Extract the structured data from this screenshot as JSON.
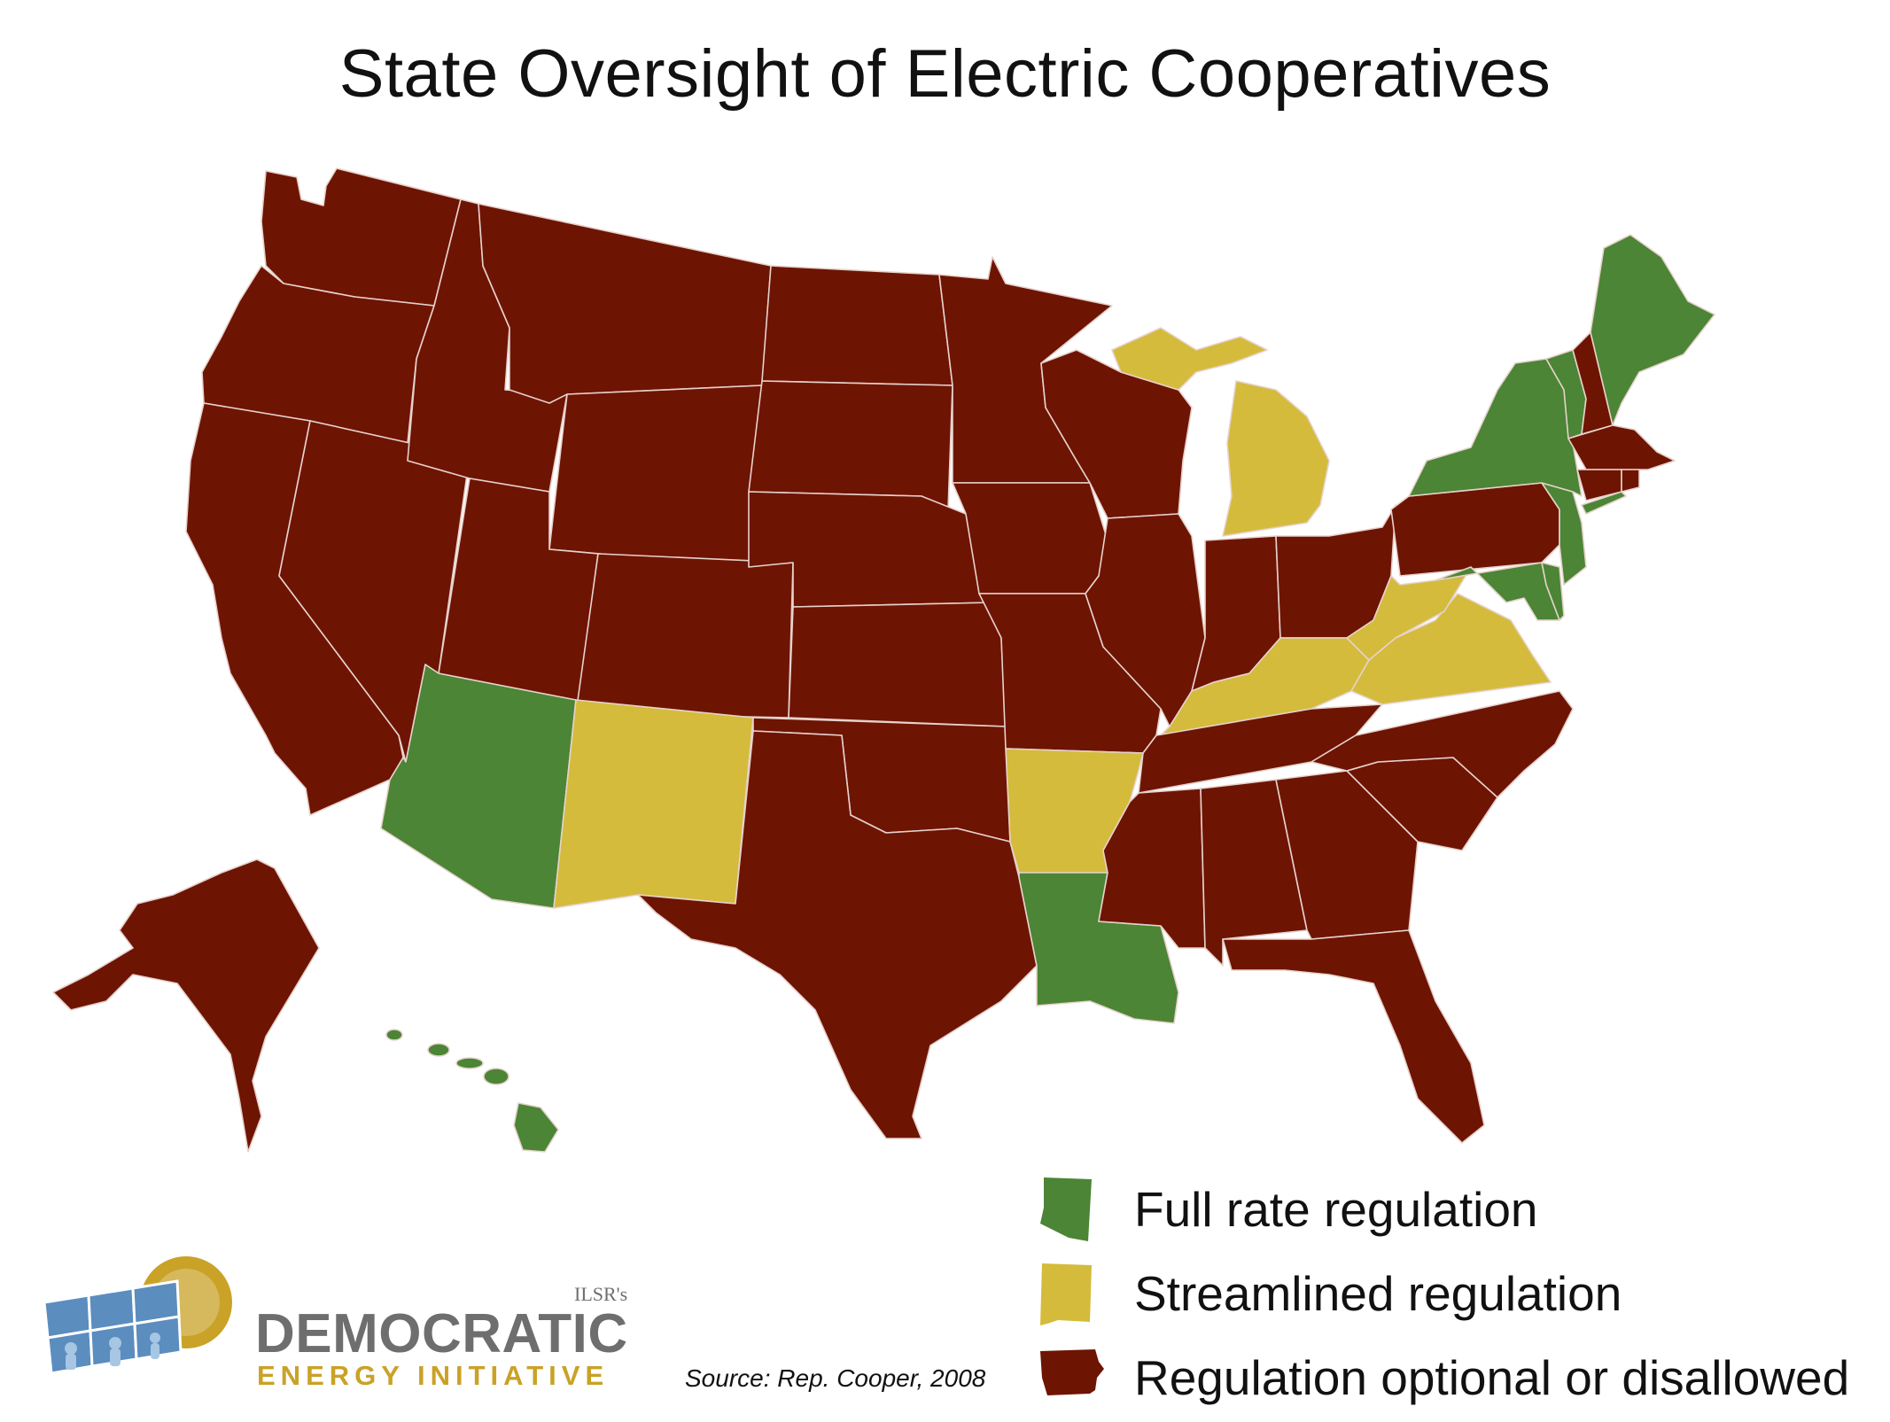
{
  "title": "State Oversight of Electric Cooperatives",
  "colors": {
    "full": "#4b8535",
    "streamlined": "#d4bb3b",
    "optional": "#6e1403",
    "border": "#e6d2cc"
  },
  "legend": [
    {
      "label": "Full rate regulation",
      "category": "full"
    },
    {
      "label": "Streamlined regulation",
      "category": "streamlined"
    },
    {
      "label": "Regulation optional or disallowed",
      "category": "optional"
    }
  ],
  "source": "Source: Rep. Cooper, 2008",
  "logo": {
    "org": "ILSR's",
    "main": "DEMOCRATIC",
    "sub": "ENERGY INITIATIVE"
  },
  "states": {
    "full": [
      "Arizona",
      "Louisiana",
      "Hawaii",
      "Maine",
      "New York",
      "Vermont",
      "Maryland",
      "New Jersey",
      "Delaware"
    ],
    "streamlined": [
      "New Mexico",
      "Arkansas",
      "Michigan",
      "Kentucky",
      "West Virginia",
      "Virginia"
    ],
    "optional": [
      "Washington",
      "Oregon",
      "California",
      "Nevada",
      "Idaho",
      "Montana",
      "Wyoming",
      "Utah",
      "Colorado",
      "North Dakota",
      "South Dakota",
      "Nebraska",
      "Kansas",
      "Oklahoma",
      "Texas",
      "Minnesota",
      "Iowa",
      "Missouri",
      "Wisconsin",
      "Illinois",
      "Indiana",
      "Ohio",
      "Pennsylvania",
      "Tennessee",
      "Mississippi",
      "Alabama",
      "Georgia",
      "Florida",
      "South Carolina",
      "North Carolina",
      "New Hampshire",
      "Massachusetts",
      "Connecticut",
      "Rhode Island",
      "Alaska"
    ]
  }
}
